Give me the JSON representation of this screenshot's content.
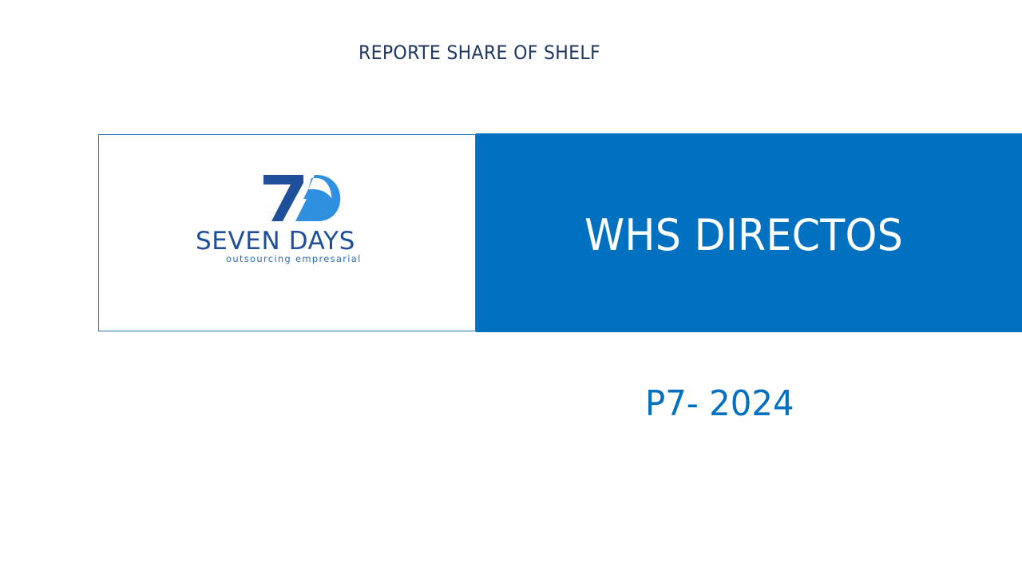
{
  "report_title": "REPORTE SHARE OF SHELF",
  "logo": {
    "mark": "7D",
    "name": "SEVEN DAYS",
    "tagline": "outsourcing empresarial",
    "colors": {
      "dark_blue": "#1f4e9a",
      "light_blue": "#2f8fe0"
    }
  },
  "band": {
    "title": "WHS DIRECTOS",
    "color": "#0070c0"
  },
  "period": "P7- 2024"
}
